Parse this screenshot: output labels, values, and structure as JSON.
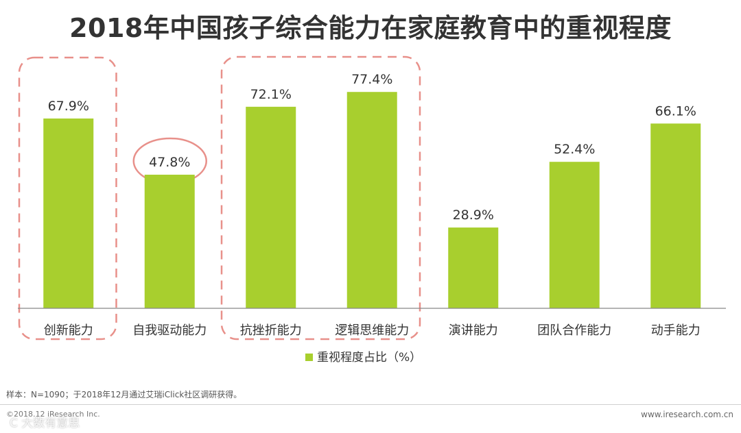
{
  "title": "2018年中国孩子综合能力在家庭教育中的重视程度",
  "chart_data": {
    "type": "bar",
    "categories": [
      "创新能力",
      "自我驱动能力",
      "抗挫折能力",
      "逻辑思维能力",
      "演讲能力",
      "团队合作能力",
      "动手能力"
    ],
    "series": [
      {
        "name": "重视程度占比（%）",
        "values": [
          67.9,
          47.8,
          72.1,
          77.4,
          28.9,
          52.4,
          66.1
        ]
      }
    ],
    "data_labels": [
      "67.9%",
      "47.8%",
      "72.1%",
      "77.4%",
      "28.9%",
      "52.4%",
      "66.1%"
    ],
    "ylim": [
      0,
      100
    ],
    "grid": false,
    "legend": "bottom-center",
    "highlights": {
      "dashed_groups": [
        [
          "创新能力"
        ],
        [
          "抗挫折能力",
          "逻辑思维能力"
        ]
      ],
      "circled_label": "自我驱动能力"
    },
    "colors": {
      "bar": "#a8cf2e",
      "highlight": "#e8908a",
      "axis": "#888888"
    }
  },
  "footnote": "样本：N=1090；于2018年12月通过艾瑞iClick社区调研获得。",
  "copyright": "©2018.12 iResearch Inc.",
  "website": "www.iresearch.com.cn",
  "watermark": "C 大数有意思"
}
